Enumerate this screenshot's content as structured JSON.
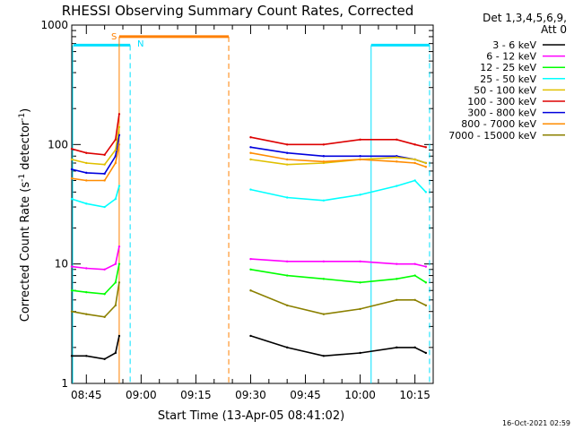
{
  "chart_data": {
    "type": "line",
    "title": "RHESSI Observing Summary Count Rates, Corrected",
    "xlabel": "Start Time (13-Apr-05 08:41:02)",
    "ylabel_main": "Corrected Count Rate (s",
    "ylabel_sup1": "-1",
    "ylabel_mid": " detector",
    "ylabel_sup2": "-1",
    "ylabel_end": ")",
    "yscale": "log",
    "ylim": [
      1,
      1000
    ],
    "xlim": [
      "08:41",
      "10:20"
    ],
    "x_ticks": [
      "08:45",
      "09:00",
      "09:15",
      "09:30",
      "09:45",
      "10:00",
      "10:15"
    ],
    "y_ticks": [
      "1",
      "10",
      "100",
      "1000"
    ],
    "detector_label": "Det 1,3,4,5,6,9,",
    "attenuator_label": "Att 0",
    "timestamp": "16-Oct-2021 02:59",
    "legend_position": "right",
    "legend": [
      {
        "label": "3 - 6 keV",
        "color": "#000000"
      },
      {
        "label": "6 - 12 keV",
        "color": "#ff00ff"
      },
      {
        "label": "12 - 25 keV",
        "color": "#00ff00"
      },
      {
        "label": "25 - 50 keV",
        "color": "#00ffff"
      },
      {
        "label": "50 - 100 keV",
        "color": "#e0c000"
      },
      {
        "label": "100 - 300 keV",
        "color": "#dd0000"
      },
      {
        "label": "300 - 800 keV",
        "color": "#0000dd"
      },
      {
        "label": "800 - 7000 keV",
        "color": "#ff8c00"
      },
      {
        "label": "7000 - 15000 keV",
        "color": "#8b8000"
      }
    ],
    "markers": {
      "saa_label": "S",
      "night_label": "N",
      "saa_color": "#ff8000",
      "night_color": "#00e0ff",
      "saa_start": "08:54",
      "saa_end": "09:24",
      "night_start": "08:41",
      "night_end": "08:57",
      "night2_start": "10:03",
      "night2_end": "10:19",
      "saa_level": 800,
      "night_level": 680
    },
    "series": [
      {
        "color": "#dd0000",
        "x": [
          "08:41",
          "08:45",
          "08:50",
          "08:53",
          "08:54",
          "09:24",
          "09:30",
          "09:40",
          "09:50",
          "10:00",
          "10:10",
          "10:15",
          "10:18"
        ],
        "y": [
          92,
          85,
          82,
          110,
          180,
          null,
          115,
          100,
          100,
          110,
          110,
          100,
          95
        ]
      },
      {
        "color": "#0000dd",
        "x": [
          "08:41",
          "08:45",
          "08:50",
          "08:53",
          "08:54",
          "09:24",
          "09:30",
          "09:40",
          "09:50",
          "10:00",
          "10:10",
          "10:15",
          "10:18"
        ],
        "y": [
          62,
          58,
          57,
          80,
          120,
          null,
          95,
          85,
          80,
          80,
          80,
          75,
          70
        ]
      },
      {
        "color": "#e0c000",
        "x": [
          "08:41",
          "08:45",
          "08:50",
          "08:53",
          "08:54",
          "09:24",
          "09:30",
          "09:40",
          "09:50",
          "10:00",
          "10:10",
          "10:15",
          "10:18"
        ],
        "y": [
          75,
          70,
          68,
          90,
          140,
          null,
          75,
          68,
          70,
          75,
          78,
          75,
          70
        ]
      },
      {
        "color": "#ff8c00",
        "x": [
          "08:41",
          "08:45",
          "08:50",
          "08:53",
          "08:54",
          "09:24",
          "09:30",
          "09:40",
          "09:50",
          "10:00",
          "10:10",
          "10:15",
          "10:18"
        ],
        "y": [
          52,
          50,
          50,
          70,
          100,
          null,
          85,
          75,
          72,
          75,
          72,
          70,
          65
        ]
      },
      {
        "color": "#00ffff",
        "x": [
          "08:41",
          "08:45",
          "08:50",
          "08:53",
          "08:54",
          "09:24",
          "09:30",
          "09:40",
          "09:50",
          "10:00",
          "10:10",
          "10:15",
          "10:18"
        ],
        "y": [
          35,
          32,
          30,
          35,
          45,
          null,
          42,
          36,
          34,
          38,
          45,
          50,
          40
        ]
      },
      {
        "color": "#ff00ff",
        "x": [
          "08:41",
          "08:45",
          "08:50",
          "08:53",
          "08:54",
          "09:24",
          "09:30",
          "09:40",
          "09:50",
          "10:00",
          "10:10",
          "10:15",
          "10:18"
        ],
        "y": [
          9.5,
          9.2,
          9,
          10,
          14,
          null,
          11,
          10.5,
          10.5,
          10.5,
          10,
          10,
          9.5
        ]
      },
      {
        "color": "#00ff00",
        "x": [
          "08:41",
          "08:45",
          "08:50",
          "08:53",
          "08:54",
          "09:24",
          "09:30",
          "09:40",
          "09:50",
          "10:00",
          "10:10",
          "10:15",
          "10:18"
        ],
        "y": [
          6,
          5.8,
          5.6,
          7,
          10,
          null,
          9,
          8,
          7.5,
          7,
          7.5,
          8,
          7
        ]
      },
      {
        "color": "#8b8000",
        "x": [
          "08:41",
          "08:45",
          "08:50",
          "08:53",
          "08:54",
          "09:24",
          "09:30",
          "09:40",
          "09:50",
          "10:00",
          "10:10",
          "10:15",
          "10:18"
        ],
        "y": [
          4,
          3.8,
          3.6,
          4.5,
          7,
          null,
          6,
          4.5,
          3.8,
          4.2,
          5,
          5,
          4.5
        ]
      },
      {
        "color": "#000000",
        "x": [
          "08:41",
          "08:45",
          "08:50",
          "08:53",
          "08:54",
          "09:24",
          "09:30",
          "09:40",
          "09:50",
          "10:00",
          "10:10",
          "10:15",
          "10:18"
        ],
        "y": [
          1.7,
          1.7,
          1.6,
          1.8,
          2.5,
          null,
          2.5,
          2,
          1.7,
          1.8,
          2,
          2,
          1.8
        ]
      }
    ]
  }
}
